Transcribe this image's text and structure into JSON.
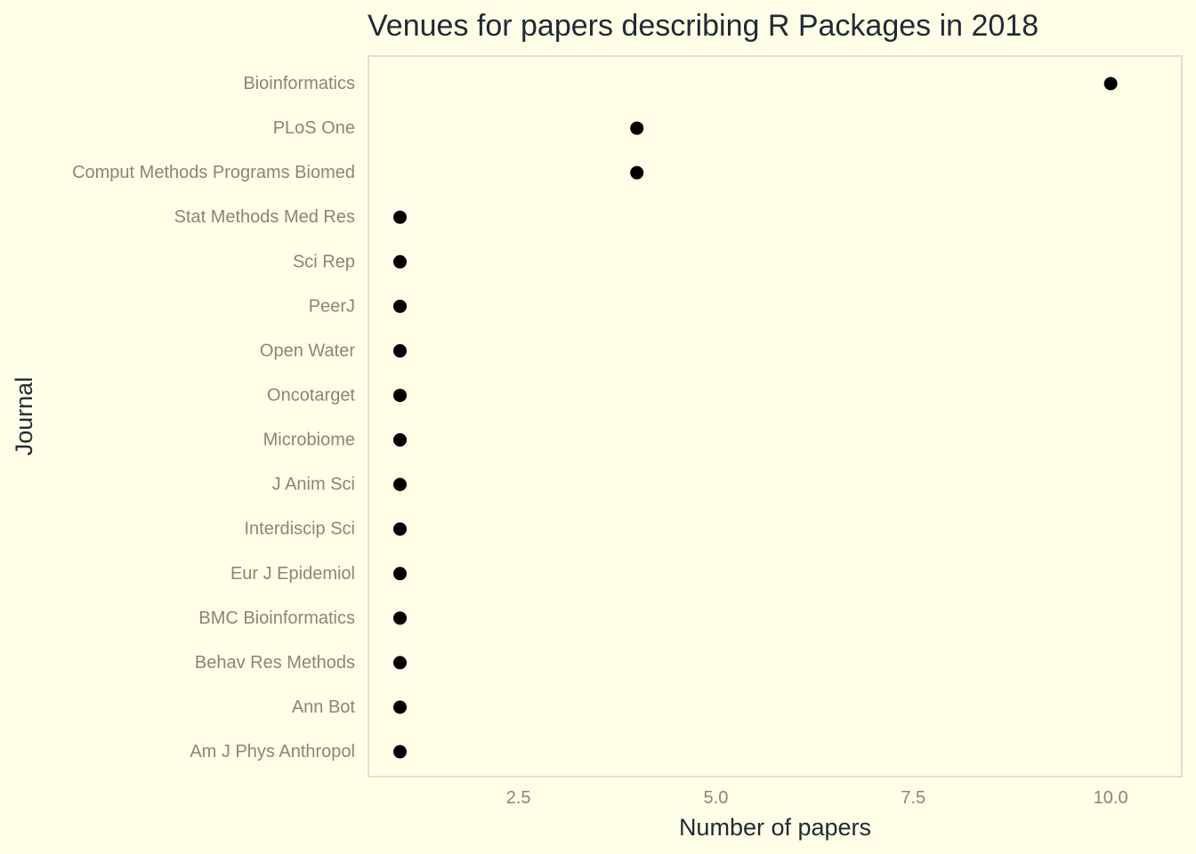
{
  "chart_data": {
    "type": "scatter",
    "title": "Venues for papers describing R Packages in 2018",
    "xlabel": "Number of papers",
    "ylabel": "Journal",
    "xlim": [
      0.6,
      10.9
    ],
    "x_ticks": [
      2.5,
      5.0,
      7.5,
      10.0
    ],
    "x_tick_labels": [
      "2.5",
      "5.0",
      "7.5",
      "10.0"
    ],
    "grid": false,
    "categories": [
      "Bioinformatics",
      "PLoS One",
      "Comput Methods Programs Biomed",
      "Stat Methods Med Res",
      "Sci Rep",
      "PeerJ",
      "Open Water",
      "Oncotarget",
      "Microbiome",
      "J Anim Sci",
      "Interdiscip Sci",
      "Eur J Epidemiol",
      "BMC Bioinformatics",
      "Behav Res Methods",
      "Ann Bot",
      "Am J Phys Anthropol"
    ],
    "values": [
      10,
      4,
      4,
      1,
      1,
      1,
      1,
      1,
      1,
      1,
      1,
      1,
      1,
      1,
      1,
      1
    ],
    "colors": {
      "background": "#ffffe8",
      "point": "#000000",
      "panel_border": "#eadfbd",
      "tick_text": "#8c8576",
      "title_text": "#1f2a33"
    }
  }
}
